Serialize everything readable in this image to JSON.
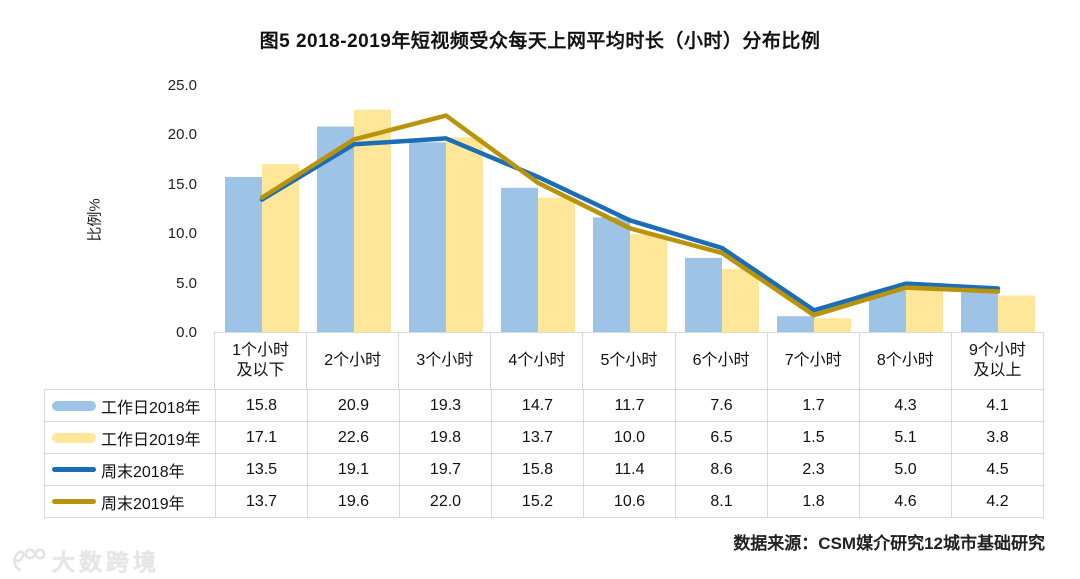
{
  "title": "图5 2018-2019年短视频受众每天上网平均时长（小时）分布比例",
  "source": "数据来源：CSM媒介研究12城市基础研究",
  "watermark": "大数跨境",
  "colors": {
    "bar_2018": "#9DC3E6",
    "bar_2019": "#FFE699",
    "line_2018": "#1B6EB5",
    "line_2019": "#B8930B",
    "table_border": "#D9D9D9"
  },
  "chart_data": {
    "type": "bar",
    "subtype": "bar+line combo with data table",
    "title": "图5 2018-2019年短视频受众每天上网平均时长（小时）分布比例",
    "xlabel": "",
    "ylabel": "比例%",
    "ylim": [
      0,
      25
    ],
    "ytick_step": 5,
    "grid": false,
    "legend_position": "table-left-column",
    "categories": [
      "1个小时\n及以下",
      "2个小时",
      "3个小时",
      "4个小时",
      "5个小时",
      "6个小时",
      "7个小时",
      "8个小时",
      "9个小时\n及以上"
    ],
    "series": [
      {
        "name": "工作日2018年",
        "type": "bar",
        "color": "#9DC3E6",
        "values": [
          15.8,
          20.9,
          19.3,
          14.7,
          11.7,
          7.6,
          1.7,
          4.3,
          4.1
        ]
      },
      {
        "name": "工作日2019年",
        "type": "bar",
        "color": "#FFE699",
        "values": [
          17.1,
          22.6,
          19.8,
          13.7,
          10.0,
          6.5,
          1.5,
          5.1,
          3.8
        ]
      },
      {
        "name": "周末2018年",
        "type": "line",
        "color": "#1B6EB5",
        "values": [
          13.5,
          19.1,
          19.7,
          15.8,
          11.4,
          8.6,
          2.3,
          5.0,
          4.5
        ]
      },
      {
        "name": "周末2019年",
        "type": "line",
        "color": "#B8930B",
        "values": [
          13.7,
          19.6,
          22.0,
          15.2,
          10.6,
          8.1,
          1.8,
          4.6,
          4.2
        ]
      }
    ]
  }
}
